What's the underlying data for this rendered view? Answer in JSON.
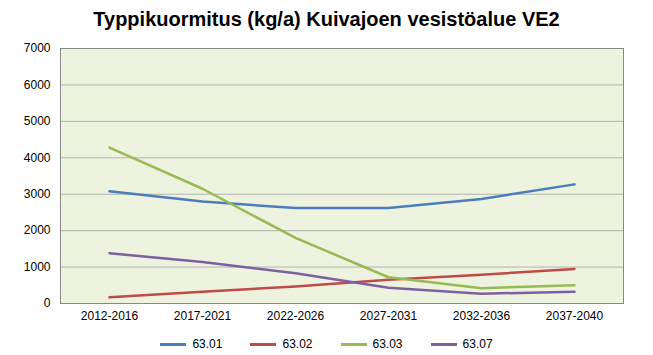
{
  "chart_data": {
    "type": "line",
    "title": "Typpikuormitus (kg/a) Kuivajoen vesistöalue VE2",
    "categories": [
      "2012-2016",
      "2017-2021",
      "2022-2026",
      "2027-2031",
      "2032-2036",
      "2037-2040"
    ],
    "series": [
      {
        "name": "63.01",
        "color": "#4a7ebb",
        "values": [
          3080,
          2800,
          2620,
          2620,
          2870,
          3270
        ]
      },
      {
        "name": "63.02",
        "color": "#be4b48",
        "values": [
          170,
          320,
          470,
          650,
          790,
          950
        ]
      },
      {
        "name": "63.03",
        "color": "#98b954",
        "values": [
          4280,
          3150,
          1800,
          720,
          420,
          500
        ]
      },
      {
        "name": "63.07",
        "color": "#7d60a0",
        "values": [
          1380,
          1140,
          830,
          430,
          270,
          320
        ]
      }
    ],
    "ylim": [
      0,
      7000
    ],
    "yticks": [
      0,
      1000,
      2000,
      3000,
      4000,
      5000,
      6000,
      7000
    ],
    "grid": true,
    "legend": "bottom"
  }
}
